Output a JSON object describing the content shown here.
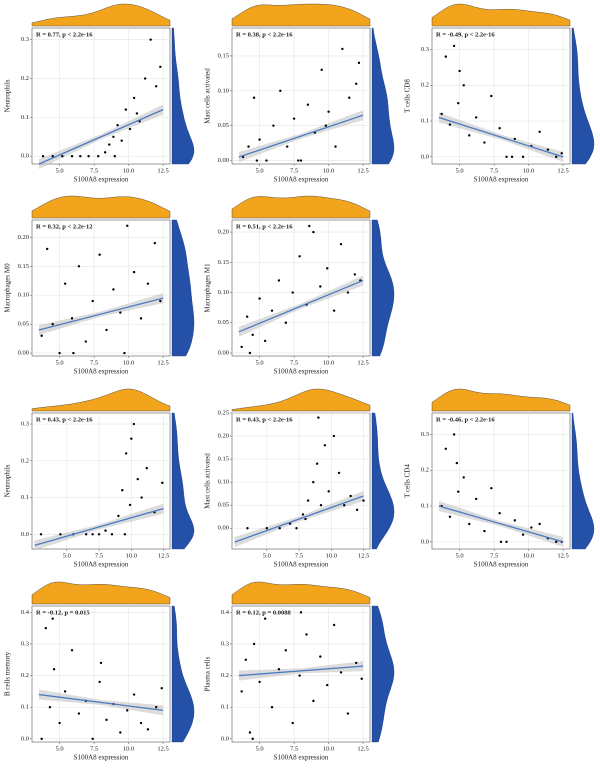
{
  "chart_data": [
    {
      "type": "scatter",
      "annotation": "R = 0.77, p < 2.2e-16",
      "xlabel": "S100A8 expression",
      "ylabel": "Neutrophils",
      "x": [
        3.8,
        4.5,
        5.2,
        5.9,
        6.5,
        7.1,
        7.8,
        8.3,
        8.6,
        8.9,
        9.2,
        9.5,
        9.8,
        10.1,
        10.4,
        10.8,
        11.2,
        11.6,
        12.0,
        12.3,
        9.0,
        10.6
      ],
      "y": [
        0,
        0,
        0,
        0,
        0,
        0,
        0,
        0.01,
        0.03,
        0.05,
        0.08,
        0.04,
        0.12,
        0.07,
        0.15,
        0.09,
        0.2,
        0.3,
        0.18,
        0.23,
        0,
        0.11
      ],
      "fit": {
        "x": [
          3.5,
          12.5
        ],
        "y": [
          -0.02,
          0.12
        ]
      },
      "xlim": [
        3,
        13
      ],
      "xticks": [
        {
          "value": 5,
          "label": "5.0"
        },
        7.5,
        {
          "value": 10,
          "label": "10.0"
        },
        12.5
      ],
      "ylim": [
        -0.02,
        0.33
      ],
      "yticks": [
        {
          "value": 0,
          "label": "0.0"
        },
        0.1,
        0.2,
        0.3
      ]
    },
    {
      "type": "scatter",
      "annotation": "R = 0.38, p < 2.2e-16",
      "xlabel": "S100A8 expression",
      "ylabel": "Mast cells activated",
      "x": [
        3.8,
        4.2,
        4.6,
        5.0,
        5.5,
        6.0,
        6.5,
        7.0,
        7.5,
        8.0,
        8.5,
        9.0,
        9.5,
        10.0,
        10.5,
        11.0,
        11.5,
        12.0,
        4.8,
        7.8,
        9.8,
        12.2
      ],
      "y": [
        0.005,
        0.02,
        0.09,
        0.03,
        0,
        0.05,
        0.1,
        0.02,
        0.06,
        0,
        0.08,
        0.04,
        0.13,
        0.07,
        0.02,
        0.16,
        0.09,
        0.11,
        0,
        0,
        0.05,
        0.14
      ],
      "fit": {
        "x": [
          3.5,
          12.5
        ],
        "y": [
          0.005,
          0.065
        ]
      },
      "xlim": [
        3,
        13
      ],
      "xticks": [
        {
          "value": 5,
          "label": "5.0"
        },
        7.5,
        {
          "value": 10,
          "label": "10.0"
        },
        12.5
      ],
      "ylim": [
        -0.005,
        0.19
      ],
      "yticks": [
        {
          "value": 0,
          "label": "0.00"
        },
        0.05,
        {
          "value": 0.1,
          "label": "0.10"
        },
        0.15
      ]
    },
    {
      "type": "scatter",
      "annotation": "R = -0.49, p < 2.2e-16",
      "xlabel": "S100A8 expression",
      "ylabel": "T cells CD8",
      "x": [
        3.7,
        4.0,
        4.3,
        4.6,
        4.9,
        5.3,
        5.7,
        6.2,
        6.8,
        7.3,
        7.9,
        8.4,
        9.0,
        9.6,
        10.2,
        10.8,
        11.4,
        12.0,
        12.4,
        5.0,
        8.8
      ],
      "y": [
        0.12,
        0.28,
        0.09,
        0.31,
        0.15,
        0.2,
        0.06,
        0.11,
        0.04,
        0.17,
        0.08,
        0,
        0.05,
        0,
        0.03,
        0.07,
        0.02,
        0,
        0.01,
        0.24,
        0
      ],
      "fit": {
        "x": [
          3.5,
          12.5
        ],
        "y": [
          0.11,
          0.0
        ]
      },
      "xlim": [
        3,
        13
      ],
      "xticks": [
        {
          "value": 5,
          "label": "5.0"
        },
        7.5,
        {
          "value": 10,
          "label": "10.0"
        },
        12.5
      ],
      "ylim": [
        -0.02,
        0.36
      ],
      "yticks": [
        {
          "value": 0,
          "label": "0.0"
        },
        0.1,
        0.2,
        0.3
      ]
    },
    {
      "type": "scatter",
      "annotation": "R = 0.32, p < 2.2e-12",
      "xlabel": "S100A8 expression",
      "ylabel": "Macrophages M0",
      "x": [
        3.7,
        4.1,
        4.5,
        5.0,
        5.4,
        5.9,
        6.4,
        6.9,
        7.4,
        7.9,
        8.4,
        8.9,
        9.4,
        9.9,
        10.4,
        10.9,
        11.4,
        11.9,
        12.3,
        6.0,
        9.7
      ],
      "y": [
        0.03,
        0.18,
        0.05,
        0,
        0.12,
        0.06,
        0.15,
        0.02,
        0.09,
        0.17,
        0.04,
        0.11,
        0.07,
        0.22,
        0.14,
        0.06,
        0.12,
        0.19,
        0.09,
        0,
        0
      ],
      "fit": {
        "x": [
          3.5,
          12.5
        ],
        "y": [
          0.04,
          0.095
        ]
      },
      "xlim": [
        3,
        13
      ],
      "xticks": [
        {
          "value": 5,
          "label": "5.0"
        },
        7.5,
        {
          "value": 10,
          "label": "10.0"
        },
        12.5
      ],
      "ylim": [
        -0.005,
        0.23
      ],
      "yticks": [
        {
          "value": 0,
          "label": "0.00"
        },
        0.05,
        {
          "value": 0.1,
          "label": "0.10"
        },
        0.15,
        {
          "value": 0.2,
          "label": "0.20"
        }
      ]
    },
    {
      "type": "scatter",
      "annotation": "R = 0.51, p < 2.2e-16",
      "xlabel": "S100A8 expression",
      "ylabel": "Macrophages M1",
      "x": [
        3.7,
        4.1,
        4.5,
        5.0,
        5.4,
        5.9,
        6.4,
        6.9,
        7.4,
        7.9,
        8.4,
        8.9,
        9.4,
        9.9,
        10.4,
        10.9,
        11.4,
        11.9,
        12.3,
        4.3,
        8.6
      ],
      "y": [
        0.01,
        0.06,
        0.03,
        0.09,
        0.02,
        0.07,
        0.12,
        0.05,
        0.1,
        0.16,
        0.08,
        0.2,
        0.11,
        0.14,
        0.07,
        0.18,
        0.1,
        0.13,
        0.12,
        0,
        0.21
      ],
      "fit": {
        "x": [
          3.5,
          12.5
        ],
        "y": [
          0.035,
          0.12
        ]
      },
      "xlim": [
        3,
        13
      ],
      "xticks": [
        {
          "value": 5,
          "label": "5.0"
        },
        7.5,
        {
          "value": 10,
          "label": "10.0"
        },
        12.5
      ],
      "ylim": [
        -0.005,
        0.22
      ],
      "yticks": [
        {
          "value": 0,
          "label": "0.00"
        },
        0.05,
        {
          "value": 0.1,
          "label": "0.10"
        },
        0.15,
        {
          "value": 0.2,
          "label": "0.20"
        }
      ]
    },
    {
      "type": "scatter",
      "annotation": "R = 0.43, p < 2.2e-16",
      "xlabel": "S100A8 expression",
      "ylabel": "Neutrophils",
      "x": [
        3.0,
        4.5,
        5.5,
        6.5,
        7.0,
        7.5,
        8.0,
        8.5,
        9.0,
        9.3,
        9.6,
        9.9,
        10.2,
        10.5,
        10.8,
        11.2,
        11.8,
        12.4,
        9.5,
        10.0
      ],
      "y": [
        0,
        0,
        0,
        0,
        0,
        0,
        0.01,
        0,
        0.05,
        0.12,
        0.22,
        0.08,
        0.3,
        0.15,
        0.1,
        0.18,
        0.06,
        0.14,
        0,
        0.26
      ],
      "fit": {
        "x": [
          2.5,
          12.5
        ],
        "y": [
          -0.03,
          0.07
        ]
      },
      "xlim": [
        2.3,
        13
      ],
      "xticks": [
        {
          "value": 5,
          "label": "5.0"
        },
        7.5,
        {
          "value": 10,
          "label": "10.0"
        },
        12.5
      ],
      "ylim": [
        -0.04,
        0.33
      ],
      "yticks": [
        {
          "value": 0,
          "label": "0.0"
        },
        0.1,
        0.2,
        0.3
      ]
    },
    {
      "type": "scatter",
      "annotation": "R = 0.43, p < 2.2e-16",
      "xlabel": "S100A8 expression",
      "ylabel": "Mast cells activated",
      "x": [
        3.5,
        5.0,
        6.0,
        6.8,
        7.3,
        7.8,
        8.2,
        8.6,
        8.9,
        9.2,
        9.5,
        9.8,
        10.2,
        10.6,
        11.0,
        11.5,
        12.0,
        12.5,
        8.0,
        9.0
      ],
      "y": [
        0,
        0,
        0,
        0.01,
        0,
        0.03,
        0.06,
        0.1,
        0.14,
        0.05,
        0.18,
        0.08,
        0.2,
        0.12,
        0.05,
        0.07,
        0.04,
        0.06,
        0.02,
        0.24
      ],
      "fit": {
        "x": [
          2.5,
          12.5
        ],
        "y": [
          -0.03,
          0.07
        ]
      },
      "xlim": [
        2.3,
        13
      ],
      "xticks": [
        {
          "value": 5,
          "label": "5.0"
        },
        7.5,
        {
          "value": 10,
          "label": "10.0"
        },
        12.5
      ],
      "ylim": [
        -0.045,
        0.25
      ],
      "yticks": [
        {
          "value": 0,
          "label": "0.00"
        },
        0.05,
        {
          "value": 0.1,
          "label": "0.10"
        },
        0.15,
        {
          "value": 0.2,
          "label": "0.20"
        },
        0.25
      ]
    },
    {
      "type": "scatter",
      "annotation": "R = -0.46, p < 2.2e-16",
      "xlabel": "S100A8 expression",
      "ylabel": "T cells CD4",
      "x": [
        3.7,
        4.0,
        4.3,
        4.6,
        4.9,
        5.3,
        5.7,
        6.2,
        6.8,
        7.3,
        7.9,
        8.4,
        9.0,
        9.6,
        10.2,
        10.8,
        11.4,
        12.0,
        12.4,
        4.8,
        8.0
      ],
      "y": [
        0.1,
        0.26,
        0.07,
        0.3,
        0.14,
        0.18,
        0.05,
        0.12,
        0.03,
        0.15,
        0.08,
        0,
        0.06,
        0.02,
        0.04,
        0.05,
        0.01,
        0,
        0,
        0.22,
        0
      ],
      "fit": {
        "x": [
          3.5,
          12.5
        ],
        "y": [
          0.1,
          0.0
        ]
      },
      "xlim": [
        3,
        13
      ],
      "xticks": [
        {
          "value": 5,
          "label": "5.0"
        },
        7.5,
        {
          "value": 10,
          "label": "10.0"
        },
        12.5
      ],
      "ylim": [
        -0.02,
        0.36
      ],
      "yticks": [
        {
          "value": 0,
          "label": "0.0"
        },
        0.1,
        0.2,
        0.3
      ]
    },
    {
      "type": "scatter",
      "annotation": "R = -0.12, p = 0.015",
      "xlabel": "S100A8 expression",
      "ylabel": "B cells memory",
      "x": [
        3.7,
        4.0,
        4.3,
        4.6,
        5.0,
        5.4,
        5.9,
        6.4,
        6.9,
        7.4,
        7.9,
        8.4,
        8.9,
        9.4,
        9.9,
        10.4,
        10.9,
        11.4,
        12.0,
        12.4,
        4.5,
        8.0
      ],
      "y": [
        0,
        0.35,
        0.1,
        0.22,
        0.05,
        0.15,
        0.28,
        0.08,
        0.12,
        0,
        0.18,
        0.06,
        0.11,
        0.02,
        0.09,
        0.14,
        0.05,
        0.03,
        0.1,
        0.16,
        0.38,
        0.24
      ],
      "fit": {
        "x": [
          3.5,
          12.5
        ],
        "y": [
          0.14,
          0.09
        ]
      },
      "xlim": [
        3,
        13
      ],
      "xticks": [
        {
          "value": 5,
          "label": "5.0"
        },
        7.5,
        {
          "value": 10,
          "label": "10.0"
        },
        12.5
      ],
      "ylim": [
        -0.01,
        0.42
      ],
      "yticks": [
        {
          "value": 0,
          "label": "0.0"
        },
        0.1,
        0.2,
        0.3,
        0.4
      ]
    },
    {
      "type": "scatter",
      "annotation": "R = 0.12, p = 0.0088",
      "xlabel": "S100A8 expression",
      "ylabel": "Plasma cells",
      "x": [
        3.7,
        4.0,
        4.3,
        4.6,
        5.0,
        5.4,
        5.9,
        6.4,
        6.9,
        7.4,
        7.9,
        8.4,
        8.9,
        9.4,
        9.9,
        10.4,
        10.9,
        11.4,
        12.0,
        12.4,
        4.5,
        8.0
      ],
      "y": [
        0.15,
        0.25,
        0.02,
        0.3,
        0.18,
        0.38,
        0.1,
        0.22,
        0.28,
        0.05,
        0.2,
        0.33,
        0.12,
        0.26,
        0.17,
        0.36,
        0.21,
        0.08,
        0.24,
        0.19,
        0,
        0.4
      ],
      "fit": {
        "x": [
          3.5,
          12.5
        ],
        "y": [
          0.2,
          0.23
        ]
      },
      "xlim": [
        3,
        13
      ],
      "xticks": [
        {
          "value": 5,
          "label": "5.0"
        },
        7.5,
        {
          "value": 10,
          "label": "10.0"
        },
        12.5
      ],
      "ylim": [
        -0.01,
        0.42
      ],
      "yticks": [
        {
          "value": 0,
          "label": "0.0"
        },
        0.1,
        0.2,
        0.3,
        0.4
      ]
    }
  ]
}
